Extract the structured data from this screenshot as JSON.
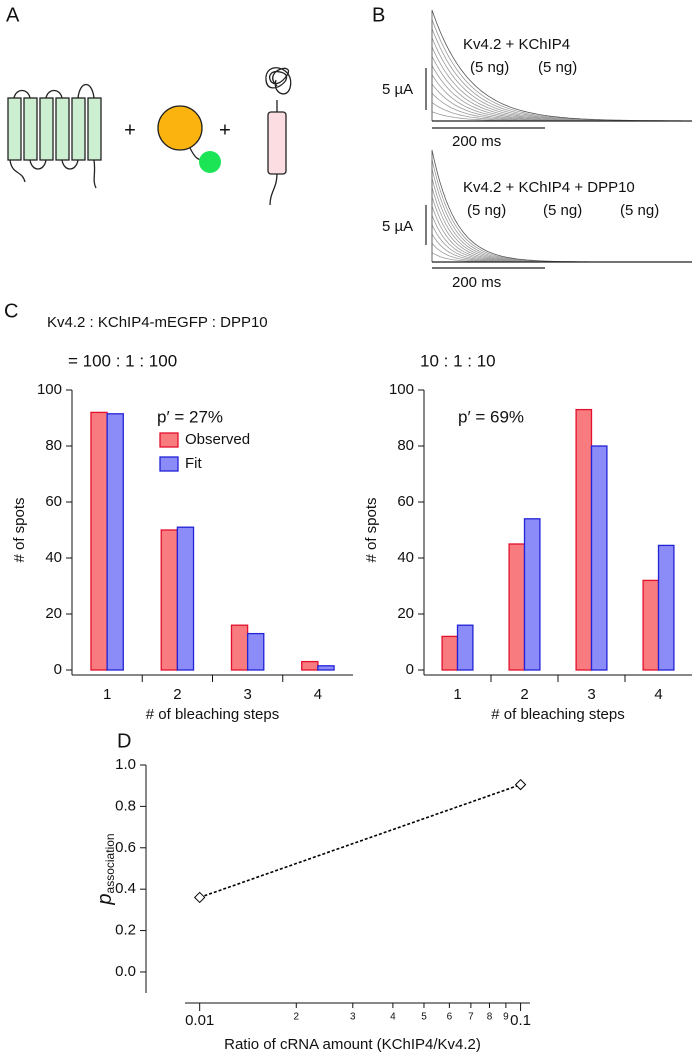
{
  "panel_labels": [
    "A",
    "B",
    "C",
    "D"
  ],
  "panel_a": {
    "plus": [
      "+",
      "+"
    ]
  },
  "panel_b": [
    {
      "title": "Kv4.2 + KChIP4",
      "amounts": [
        "(5 ng)",
        "(5 ng)"
      ],
      "scale_current": "5 µA",
      "scale_time": "200 ms"
    },
    {
      "title": "Kv4.2 + KChIP4 + DPP10",
      "amounts": [
        "(5 ng)",
        "(5 ng)",
        "(5 ng)"
      ],
      "scale_current": "5 µA",
      "scale_time": "200 ms"
    }
  ],
  "panel_c": {
    "ratio_header": "Kv4.2 : KChIP4-mEGFP : DPP10"
  },
  "chart_data": [
    {
      "type": "bar",
      "subtitle": "= 100 : 1 : 100",
      "annotation": "p′ = 27%",
      "categories": [
        "1",
        "2",
        "3",
        "4"
      ],
      "series": [
        {
          "name": "Observed",
          "color": "#f77b7f",
          "edgecolor": "#e3102c",
          "values": [
            92,
            50,
            16,
            3
          ]
        },
        {
          "name": "Fit",
          "color": "#8b8cf7",
          "edgecolor": "#2222d6",
          "values": [
            91.5,
            51,
            13,
            1.5
          ]
        }
      ],
      "ylim": [
        0,
        100
      ],
      "yticks": [
        0,
        20,
        40,
        60,
        80,
        100
      ],
      "xlabel": "# of bleaching steps",
      "ylabel": "# of spots",
      "legend": "upper right"
    },
    {
      "type": "bar",
      "subtitle": "10 : 1 : 10",
      "annotation": "p′ = 69%",
      "categories": [
        "1",
        "2",
        "3",
        "4"
      ],
      "series": [
        {
          "color": "#f77b7f",
          "edgecolor": "#e3102c",
          "values": [
            12,
            45,
            93,
            32
          ]
        },
        {
          "color": "#8b8cf7",
          "edgecolor": "#2222d6",
          "values": [
            16,
            54,
            80,
            44.5
          ]
        }
      ],
      "ylim": [
        0,
        100
      ],
      "yticks": [
        0,
        20,
        40,
        60,
        80,
        100
      ],
      "xlabel": "# of bleaching steps",
      "ylabel": "# of spots"
    },
    {
      "type": "line",
      "x": [
        0.01,
        0.1
      ],
      "values": [
        0.36,
        0.905
      ],
      "color": "#000000",
      "marker": "diamond",
      "linestyle": "dotted",
      "xscale": "log",
      "xlim": [
        0.009,
        0.107
      ],
      "ylim": [
        -0.15,
        1.0
      ],
      "xticks": [
        0.01,
        {
          "value": 0.02,
          "label": "2"
        },
        {
          "value": 0.03,
          "label": "3"
        },
        {
          "value": 0.04,
          "label": "4"
        },
        {
          "value": 0.05,
          "label": "5"
        },
        {
          "value": 0.06,
          "label": "6"
        },
        {
          "value": 0.07,
          "label": "7"
        },
        {
          "value": 0.08,
          "label": "8"
        },
        {
          "value": 0.09,
          "label": "9"
        },
        0.1
      ],
      "yticks": [
        {
          "value": 0,
          "label": "0.0"
        },
        {
          "value": 0.2,
          "label": "0.2"
        },
        {
          "value": 0.4,
          "label": "0.4"
        },
        {
          "value": 0.6,
          "label": "0.6"
        },
        {
          "value": 0.8,
          "label": "0.8"
        },
        {
          "value": 1,
          "label": "1.0"
        }
      ],
      "xlabel": "Ratio of cRNA amount (KChIP4/Kv4.2)",
      "ylabel": "p",
      "ylabel_sub": "association"
    }
  ]
}
